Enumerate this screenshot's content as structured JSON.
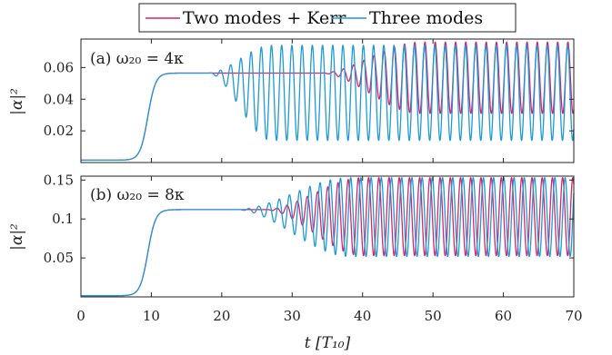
{
  "legend": {
    "entries": [
      {
        "label": "Two modes + Kerr",
        "color": "#d6246e"
      },
      {
        "label": "Three modes",
        "color": "#1f9ad6"
      }
    ]
  },
  "chart_data": [
    {
      "type": "line",
      "panel_label": "(a) ω₂₀ = 4κ",
      "xlabel": "t [T₁₀]",
      "ylabel": "|α|²",
      "xlim": [
        0,
        70
      ],
      "ylim": [
        0,
        0.078
      ],
      "x_ticks": [
        0,
        10,
        20,
        30,
        40,
        50,
        60,
        70
      ],
      "y_ticks": [
        0.02,
        0.04,
        0.06
      ],
      "y_tick_labels": [
        "0.02",
        "0.04",
        "0.06"
      ],
      "grid": false,
      "series": [
        {
          "name": "Two modes + Kerr",
          "color": "#d6246e",
          "ramp_center": 9.5,
          "plateau": 0.0565,
          "osc_start": 34,
          "osc_full": 48,
          "hi": 0.076,
          "lo": 0.031,
          "period": 1.45
        },
        {
          "name": "Three modes",
          "color": "#1f9ad6",
          "ramp_center": 9.5,
          "plateau": 0.0565,
          "osc_start": 18,
          "osc_full": 27,
          "hi": 0.074,
          "lo": 0.014,
          "period": 1.45
        }
      ]
    },
    {
      "type": "line",
      "panel_label": "(b) ω₂₀ = 8κ",
      "xlabel": "t [T₁₀]",
      "ylabel": "|α|²",
      "xlim": [
        0,
        70
      ],
      "ylim": [
        0,
        0.155
      ],
      "x_ticks": [
        0,
        10,
        20,
        30,
        40,
        50,
        60,
        70
      ],
      "x_tick_labels": [
        "0",
        "10",
        "20",
        "30",
        "40",
        "50",
        "60",
        "70"
      ],
      "y_ticks": [
        0.05,
        0.1,
        0.15
      ],
      "y_tick_labels": [
        "0.05",
        "0.1",
        "0.15"
      ],
      "grid": false,
      "series": [
        {
          "name": "Two modes + Kerr",
          "color": "#d6246e",
          "ramp_center": 9.5,
          "plateau": 0.112,
          "osc_start": 26,
          "osc_full": 40,
          "hi": 0.153,
          "lo": 0.053,
          "period": 1.45
        },
        {
          "name": "Three modes",
          "color": "#1f9ad6",
          "ramp_center": 9.5,
          "plateau": 0.112,
          "osc_start": 22,
          "osc_full": 38,
          "hi": 0.153,
          "lo": 0.052,
          "period": 1.45
        }
      ]
    }
  ]
}
